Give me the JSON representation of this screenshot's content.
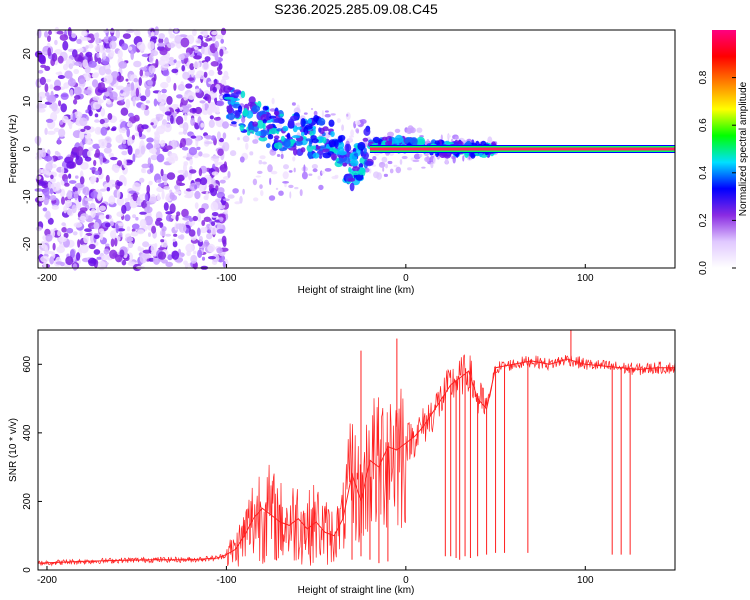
{
  "title": "S236.2025.285.09.08.C45",
  "chart_data": [
    {
      "type": "heatmap",
      "name": "spectrogram",
      "xlabel": "Height of straight line (km)",
      "ylabel": "Frequency (Hz)",
      "xlim": [
        -205,
        150
      ],
      "ylim": [
        -25,
        25
      ],
      "xticks": [
        -200,
        -100,
        0,
        100
      ],
      "xtick_labels": [
        "-200",
        "-100",
        "0",
        "100"
      ],
      "yticks": [
        -20,
        -10,
        0,
        10,
        20
      ],
      "ytick_labels": [
        "-20",
        "-10",
        "0",
        "10",
        "20"
      ],
      "noise_region_x": [
        -205,
        -100
      ],
      "coherent_band_x": [
        -30,
        150
      ],
      "coherent_band_freq_hz": 0,
      "doppler_trend": [
        {
          "x": -100,
          "y": 10
        },
        {
          "x": -80,
          "y": 5
        },
        {
          "x": -60,
          "y": 3
        },
        {
          "x": -40,
          "y": 2
        },
        {
          "x": -30,
          "y": -5
        },
        {
          "x": -20,
          "y": 1
        },
        {
          "x": 0,
          "y": 1
        },
        {
          "x": 20,
          "y": 0
        },
        {
          "x": 150,
          "y": 0
        }
      ],
      "colorbar": {
        "label": "Normalized spectral amplitude",
        "range": [
          0,
          1
        ],
        "ticks": [
          0.0,
          0.2,
          0.4,
          0.6,
          0.8
        ],
        "tick_labels": [
          "0.0",
          "0.2",
          "0.4",
          "0.6",
          "0.8"
        ],
        "colors": [
          "#ffffff",
          "#e0c8ff",
          "#8a2be2",
          "#0000ff",
          "#00e0ff",
          "#00ff00",
          "#ffff00",
          "#ff8000",
          "#ff0000",
          "#ff0080"
        ]
      }
    },
    {
      "type": "line",
      "name": "snr",
      "xlabel": "Height of straight line (km)",
      "ylabel": "SNR (10 * v/v)",
      "xlim": [
        -205,
        150
      ],
      "ylim": [
        0,
        700
      ],
      "xticks": [
        -200,
        -100,
        0,
        100
      ],
      "xtick_labels": [
        "-200",
        "-100",
        "0",
        "100"
      ],
      "yticks": [
        0,
        200,
        400,
        600
      ],
      "ytick_labels": [
        "0",
        "200",
        "400",
        "600"
      ],
      "color": "#ff2020",
      "series": [
        {
          "name": "SNR",
          "x": [
            -205,
            -180,
            -160,
            -140,
            -120,
            -105,
            -100,
            -95,
            -90,
            -85,
            -80,
            -75,
            -70,
            -65,
            -60,
            -55,
            -50,
            -45,
            -40,
            -35,
            -30,
            -25,
            -20,
            -15,
            -10,
            -5,
            0,
            5,
            10,
            15,
            20,
            25,
            30,
            35,
            40,
            45,
            50,
            60,
            70,
            80,
            90,
            100,
            110,
            120,
            130,
            140,
            150
          ],
          "y": [
            20,
            25,
            28,
            30,
            30,
            35,
            45,
            60,
            100,
            150,
            180,
            160,
            140,
            130,
            150,
            120,
            140,
            110,
            100,
            150,
            280,
            200,
            320,
            300,
            360,
            350,
            370,
            390,
            420,
            460,
            500,
            540,
            560,
            580,
            500,
            470,
            590,
            600,
            610,
            600,
            615,
            600,
            595,
            590,
            585,
            590,
            590
          ]
        }
      ],
      "drops_to_x": [
        {
          "x": -30,
          "y": 30
        },
        {
          "x": -25,
          "y": 40
        },
        {
          "x": -20,
          "y": 30
        },
        {
          "x": -15,
          "y": 20
        },
        {
          "x": -10,
          "y": 25
        },
        {
          "x": 22,
          "y": 40
        },
        {
          "x": 25,
          "y": 40
        },
        {
          "x": 28,
          "y": 35
        },
        {
          "x": 30,
          "y": 30
        },
        {
          "x": 33,
          "y": 40
        },
        {
          "x": 36,
          "y": 35
        },
        {
          "x": 40,
          "y": 40
        },
        {
          "x": 45,
          "y": 45
        },
        {
          "x": 50,
          "y": 50
        },
        {
          "x": 55,
          "y": 50
        },
        {
          "x": 68,
          "y": 50
        },
        {
          "x": 115,
          "y": 45
        },
        {
          "x": 120,
          "y": 45
        },
        {
          "x": 125,
          "y": 45
        }
      ],
      "spikes": [
        {
          "x": -25,
          "y": 640
        },
        {
          "x": -5,
          "y": 675
        },
        {
          "x": 92,
          "y": 700
        }
      ]
    }
  ]
}
